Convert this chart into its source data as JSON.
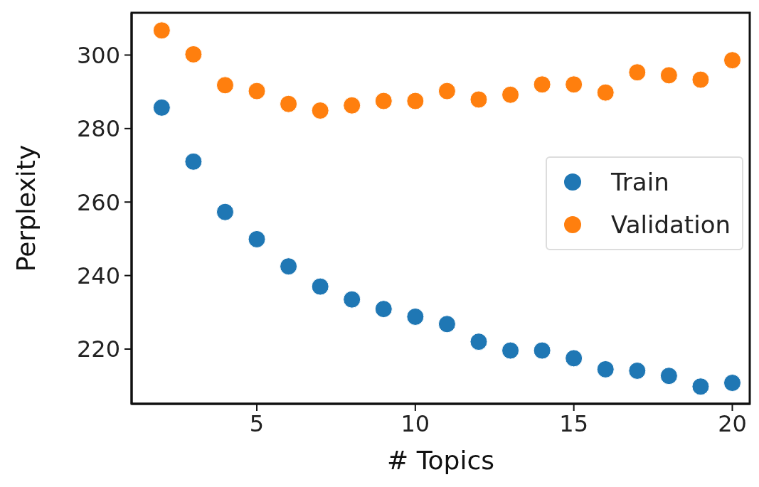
{
  "chart_data": {
    "type": "scatter",
    "xlabel": "# Topics",
    "ylabel": "Perplexity",
    "x": [
      2,
      3,
      4,
      5,
      6,
      7,
      8,
      9,
      10,
      11,
      12,
      13,
      14,
      15,
      16,
      17,
      18,
      19,
      20
    ],
    "series": [
      {
        "name": "Train",
        "color": "#1f77b4",
        "values": [
          285.7,
          271.0,
          257.3,
          249.9,
          242.5,
          237.0,
          233.5,
          230.9,
          228.8,
          226.8,
          222.0,
          219.6,
          219.6,
          217.5,
          214.5,
          214.1,
          212.7,
          209.8,
          210.8
        ]
      },
      {
        "name": "Validation",
        "color": "#ff7f0e",
        "values": [
          306.7,
          300.2,
          291.8,
          290.2,
          286.7,
          284.9,
          286.3,
          287.5,
          287.5,
          290.2,
          287.9,
          289.2,
          292.0,
          292.0,
          289.8,
          295.3,
          294.5,
          293.3,
          298.6
        ]
      }
    ],
    "xlim": [
      1.05,
      20.55
    ],
    "ylim": [
      205.1,
      311.5
    ],
    "xticks": [
      5,
      10,
      15,
      20
    ],
    "yticks": [
      220,
      240,
      260,
      280,
      300
    ],
    "legend": "right",
    "grid": false,
    "marker": "circle"
  }
}
